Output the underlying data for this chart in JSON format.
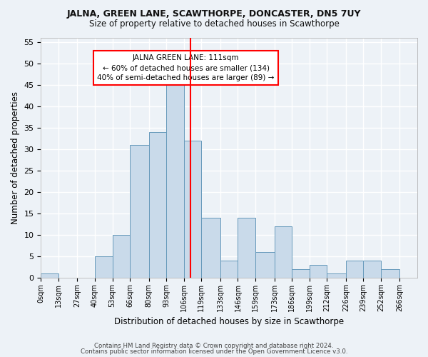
{
  "title": "JALNA, GREEN LANE, SCAWTHORPE, DONCASTER, DN5 7UY",
  "subtitle": "Size of property relative to detached houses in Scawthorpe",
  "xlabel": "Distribution of detached houses by size in Scawthorpe",
  "ylabel": "Number of detached properties",
  "bar_labels": [
    "0sqm",
    "13sqm",
    "27sqm",
    "40sqm",
    "53sqm",
    "66sqm",
    "80sqm",
    "93sqm",
    "106sqm",
    "119sqm",
    "133sqm",
    "146sqm",
    "159sqm",
    "173sqm",
    "186sqm",
    "199sqm",
    "212sqm",
    "226sqm",
    "239sqm",
    "252sqm",
    "266sqm"
  ],
  "bar_values": [
    1,
    0,
    0,
    5,
    10,
    31,
    34,
    45,
    32,
    14,
    4,
    14,
    6,
    12,
    2,
    3,
    1,
    4,
    4,
    2,
    0
  ],
  "bar_color": "#c9daea",
  "bar_edge_color": "#6699bb",
  "property_line_x": 111,
  "bin_edges": [
    0,
    13,
    27,
    40,
    53,
    66,
    80,
    93,
    106,
    119,
    133,
    146,
    159,
    173,
    186,
    199,
    212,
    226,
    239,
    252,
    266,
    279
  ],
  "annotation_title": "JALNA GREEN LANE: 111sqm",
  "annotation_line1": "← 60% of detached houses are smaller (134)",
  "annotation_line2": "40% of semi-detached houses are larger (89) →",
  "ylim": [
    0,
    56
  ],
  "yticks": [
    0,
    5,
    10,
    15,
    20,
    25,
    30,
    35,
    40,
    45,
    50,
    55
  ],
  "bg_color": "#edf2f7",
  "grid_color": "#ffffff",
  "footer1": "Contains HM Land Registry data © Crown copyright and database right 2024.",
  "footer2": "Contains public sector information licensed under the Open Government Licence v3.0."
}
